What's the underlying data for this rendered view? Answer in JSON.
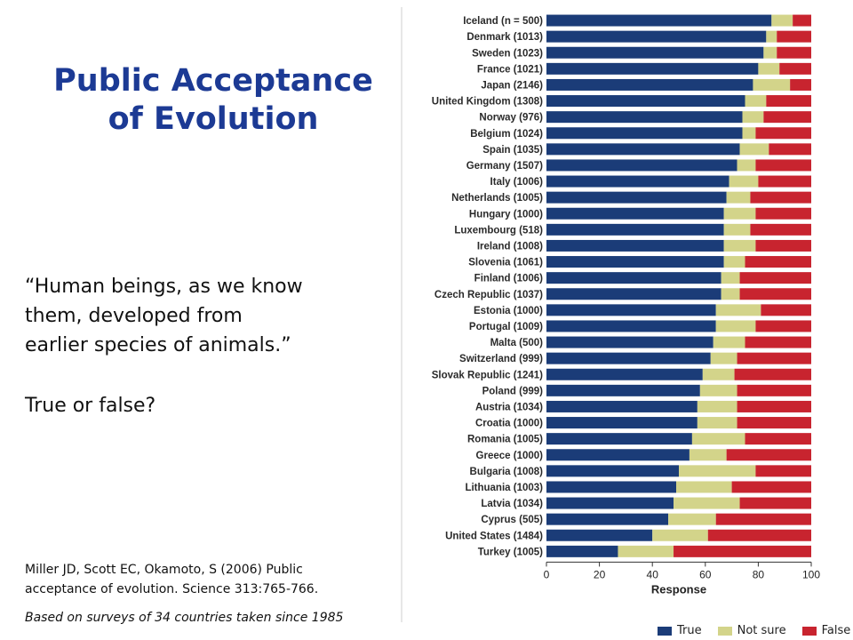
{
  "slide": {
    "title_line1": "Public Acceptance",
    "title_line2": "of Evolution",
    "quote_line1": "“Human beings, as we know",
    "quote_line2": "them, developed from",
    "quote_line3": "earlier species of animals.”",
    "question": "True or false?",
    "citation_line1": "Miller JD, Scott EC, Okamoto, S (2006)  Public",
    "citation_line2": "acceptance of evolution.  Science 313:765-766.",
    "survey_note": "Based on surveys of 34 countries taken since 1985"
  },
  "chart_data": {
    "type": "bar",
    "orientation": "horizontal",
    "stacked": true,
    "categories": [
      "Iceland (n = 500)",
      "Denmark (1013)",
      "Sweden (1023)",
      "France (1021)",
      "Japan (2146)",
      "United Kingdom (1308)",
      "Norway (976)",
      "Belgium (1024)",
      "Spain (1035)",
      "Germany (1507)",
      "Italy (1006)",
      "Netherlands (1005)",
      "Hungary (1000)",
      "Luxembourg (518)",
      "Ireland (1008)",
      "Slovenia (1061)",
      "Finland (1006)",
      "Czech Republic (1037)",
      "Estonia (1000)",
      "Portugal (1009)",
      "Malta (500)",
      "Switzerland (999)",
      "Slovak Republic (1241)",
      "Poland (999)",
      "Austria (1034)",
      "Croatia (1000)",
      "Romania (1005)",
      "Greece (1000)",
      "Bulgaria (1008)",
      "Lithuania (1003)",
      "Latvia (1034)",
      "Cyprus (505)",
      "United States (1484)",
      "Turkey (1005)"
    ],
    "series": [
      {
        "name": "True",
        "color": "#1b3c78",
        "values": [
          85,
          83,
          82,
          80,
          78,
          75,
          74,
          74,
          73,
          72,
          69,
          68,
          67,
          67,
          67,
          67,
          66,
          66,
          64,
          64,
          63,
          62,
          59,
          58,
          57,
          57,
          55,
          54,
          50,
          49,
          48,
          46,
          40,
          27
        ]
      },
      {
        "name": "Not sure",
        "color": "#d3d48a",
        "values": [
          8,
          4,
          5,
          8,
          14,
          8,
          8,
          5,
          11,
          7,
          11,
          9,
          12,
          10,
          12,
          8,
          7,
          7,
          17,
          15,
          12,
          10,
          12,
          14,
          15,
          15,
          20,
          14,
          29,
          21,
          25,
          18,
          21,
          21
        ]
      },
      {
        "name": "False",
        "color": "#c8242f",
        "values": [
          7,
          13,
          13,
          12,
          8,
          17,
          18,
          21,
          16,
          21,
          20,
          23,
          21,
          23,
          21,
          25,
          27,
          27,
          19,
          21,
          25,
          28,
          29,
          28,
          28,
          28,
          25,
          32,
          21,
          30,
          27,
          36,
          39,
          52
        ]
      }
    ],
    "xlabel": "Response",
    "xlim": [
      0,
      100
    ],
    "xticks": [
      0,
      20,
      40,
      60,
      80,
      100
    ],
    "legend_position": "bottom",
    "legend_labels": [
      "True",
      "Not sure",
      "False"
    ]
  }
}
